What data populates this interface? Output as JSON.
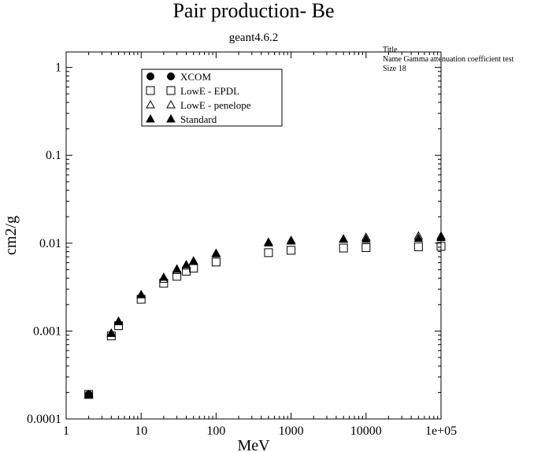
{
  "chart_data": {
    "type": "scatter",
    "title": "Pair production- Be",
    "subtitle": "geant4.6.2",
    "xlabel": "MeV",
    "ylabel": "cm2/g",
    "xscale": "log",
    "yscale": "log",
    "xlim": [
      1,
      100000
    ],
    "ylim": [
      0.0001,
      1.5
    ],
    "x_tick_labels": [
      {
        "v": 1,
        "label": "1"
      },
      {
        "v": 10,
        "label": "10"
      },
      {
        "v": 100,
        "label": "100"
      },
      {
        "v": 1000,
        "label": "1000"
      },
      {
        "v": 10000,
        "label": "10000"
      },
      {
        "v": 100000,
        "label": "1e+05"
      }
    ],
    "y_tick_labels": [
      {
        "v": 0.0001,
        "label": "0.0001"
      },
      {
        "v": 0.001,
        "label": "0.001"
      },
      {
        "v": 0.01,
        "label": "0.01"
      },
      {
        "v": 0.1,
        "label": "0.1"
      },
      {
        "v": 1,
        "label": "1"
      }
    ],
    "legend_position": "top-left",
    "annotation": {
      "lines": [
        "Title",
        "Name  Gamma attenuation coefficient test",
        "Size  18"
      ]
    },
    "series": [
      {
        "name": "XCOM",
        "marker": "circle-filled",
        "x": [
          2
        ],
        "y": [
          0.00019
        ]
      },
      {
        "name": "LowE - EPDL",
        "marker": "square-open",
        "x": [
          2,
          4,
          5,
          10,
          20,
          30,
          40,
          50,
          100,
          500,
          1000,
          5000,
          10000,
          50000,
          100000
        ],
        "y": [
          0.00019,
          0.00088,
          0.00115,
          0.0023,
          0.0035,
          0.0042,
          0.0048,
          0.0052,
          0.0061,
          0.0078,
          0.0083,
          0.0088,
          0.0089,
          0.0091,
          0.0092
        ]
      },
      {
        "name": "LowE - penelope",
        "marker": "triangle-open",
        "x": [
          2,
          4,
          5,
          10,
          20,
          30,
          40,
          50,
          100,
          500,
          1000,
          5000,
          10000,
          50000,
          100000
        ],
        "y": [
          0.00019,
          0.00094,
          0.00128,
          0.0026,
          0.0039,
          0.0049,
          0.0055,
          0.0062,
          0.0076,
          0.0103,
          0.0108,
          0.0112,
          0.0117,
          0.0121,
          0.0121
        ]
      },
      {
        "name": "Standard",
        "marker": "triangle-filled",
        "x": [
          2,
          4,
          5,
          10,
          20,
          30,
          40,
          50,
          100,
          500,
          1000,
          5000,
          10000,
          50000,
          100000
        ],
        "y": [
          0.00019,
          0.00095,
          0.0013,
          0.0026,
          0.0041,
          0.0051,
          0.0057,
          0.0063,
          0.0077,
          0.0101,
          0.0106,
          0.0111,
          0.0111,
          0.0114,
          0.0116
        ]
      }
    ]
  }
}
